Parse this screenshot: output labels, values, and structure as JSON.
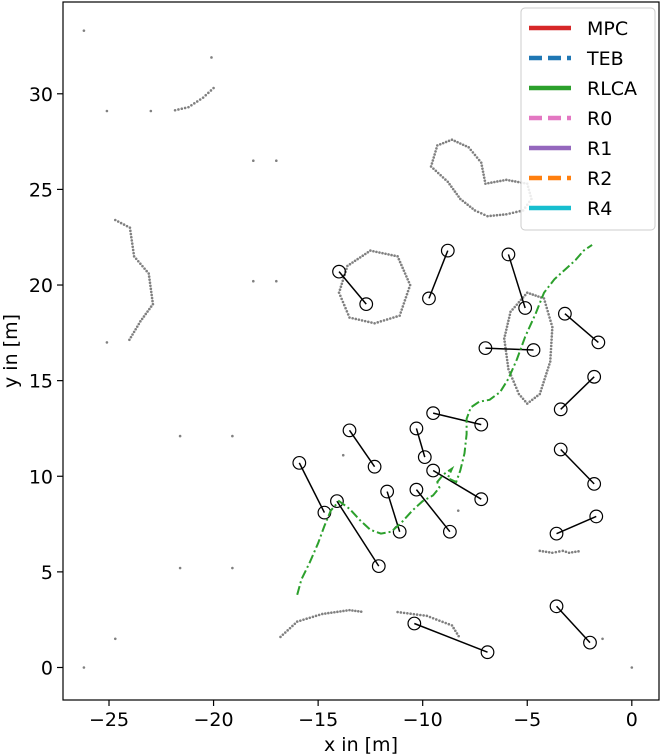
{
  "chart_data": {
    "type": "line",
    "title": "",
    "xlabel": "x in [m]",
    "ylabel": "y in [m]",
    "xlim": [
      -27.2,
      1.3
    ],
    "ylim": [
      -1.7,
      34.8
    ],
    "xticks": [
      -25,
      -20,
      -15,
      -10,
      -5,
      0
    ],
    "yticks": [
      0,
      5,
      10,
      15,
      20,
      25,
      30
    ],
    "xtick_labels": [
      "−25",
      "−20",
      "−15",
      "−10",
      "−5",
      "0"
    ],
    "ytick_labels": [
      "0",
      "5",
      "10",
      "15",
      "20",
      "25",
      "30"
    ],
    "grid": false,
    "legend_position": "top-right",
    "legend": [
      {
        "name": "MPC",
        "color": "#d62728",
        "style": "solid"
      },
      {
        "name": "TEB",
        "color": "#1f77b4",
        "style": "dashed"
      },
      {
        "name": "RLCA",
        "color": "#2ca02c",
        "style": "solid"
      },
      {
        "name": "R0",
        "color": "#e377c2",
        "style": "dashed"
      },
      {
        "name": "R1",
        "color": "#9467bd",
        "style": "solid"
      },
      {
        "name": "R2",
        "color": "#ff7f0e",
        "style": "dashed"
      },
      {
        "name": "R4",
        "color": "#17becf",
        "style": "solid"
      }
    ],
    "trajectory": {
      "name": "RLCA",
      "color": "#2ca02c",
      "style": "dashdot",
      "points": [
        [
          -16.0,
          3.8
        ],
        [
          -15.8,
          4.6
        ],
        [
          -15.4,
          5.5
        ],
        [
          -15.0,
          6.5
        ],
        [
          -14.7,
          7.4
        ],
        [
          -14.4,
          8.2
        ],
        [
          -14.0,
          8.7
        ],
        [
          -13.5,
          8.3
        ],
        [
          -13.0,
          7.7
        ],
        [
          -12.5,
          7.2
        ],
        [
          -12.0,
          7.0
        ],
        [
          -11.5,
          7.1
        ],
        [
          -11.0,
          7.6
        ],
        [
          -10.5,
          8.2
        ],
        [
          -10.0,
          8.7
        ],
        [
          -9.5,
          9.0
        ],
        [
          -9.2,
          9.4
        ],
        [
          -9.3,
          9.7
        ],
        [
          -9.0,
          10.1
        ],
        [
          -8.6,
          10.4
        ],
        [
          -8.8,
          9.9
        ],
        [
          -8.4,
          9.7
        ],
        [
          -8.2,
          10.3
        ],
        [
          -8.0,
          11.2
        ],
        [
          -7.9,
          12.2
        ],
        [
          -7.9,
          13.0
        ],
        [
          -7.7,
          13.6
        ],
        [
          -7.3,
          13.9
        ],
        [
          -6.8,
          14.0
        ],
        [
          -6.3,
          14.4
        ],
        [
          -5.9,
          15.1
        ],
        [
          -5.5,
          16.1
        ],
        [
          -5.1,
          17.3
        ],
        [
          -4.6,
          18.5
        ],
        [
          -4.2,
          19.6
        ],
        [
          -3.7,
          20.3
        ],
        [
          -3.2,
          20.8
        ],
        [
          -2.7,
          21.3
        ],
        [
          -2.3,
          21.8
        ],
        [
          -1.9,
          22.1
        ]
      ]
    },
    "obstacle_segments": [
      [
        [
          -14.0,
          20.7
        ],
        [
          -12.7,
          19.0
        ]
      ],
      [
        [
          -9.7,
          19.3
        ],
        [
          -8.8,
          21.8
        ]
      ],
      [
        [
          -5.9,
          21.6
        ],
        [
          -5.1,
          18.8
        ]
      ],
      [
        [
          -3.2,
          18.5
        ],
        [
          -1.6,
          17.0
        ]
      ],
      [
        [
          -7.0,
          16.7
        ],
        [
          -4.7,
          16.6
        ]
      ],
      [
        [
          -3.4,
          13.5
        ],
        [
          -1.8,
          15.2
        ]
      ],
      [
        [
          -9.5,
          13.3
        ],
        [
          -7.2,
          12.7
        ]
      ],
      [
        [
          -13.5,
          12.4
        ],
        [
          -12.3,
          10.5
        ]
      ],
      [
        [
          -10.3,
          12.5
        ],
        [
          -9.9,
          11.0
        ]
      ],
      [
        [
          -3.4,
          11.4
        ],
        [
          -1.8,
          9.6
        ]
      ],
      [
        [
          -9.5,
          10.3
        ],
        [
          -7.2,
          8.8
        ]
      ],
      [
        [
          -15.9,
          10.7
        ],
        [
          -14.7,
          8.1
        ]
      ],
      [
        [
          -14.1,
          8.7
        ],
        [
          -12.1,
          5.3
        ]
      ],
      [
        [
          -11.7,
          9.2
        ],
        [
          -11.1,
          7.1
        ]
      ],
      [
        [
          -10.3,
          9.3
        ],
        [
          -8.7,
          7.1
        ]
      ],
      [
        [
          -3.6,
          7.0
        ],
        [
          -1.7,
          7.9
        ]
      ],
      [
        [
          -3.6,
          3.2
        ],
        [
          -2.0,
          1.3
        ]
      ],
      [
        [
          -10.4,
          2.3
        ],
        [
          -6.9,
          0.8
        ]
      ]
    ],
    "map_arcs": [
      [
        [
          -20.0,
          30.3
        ],
        [
          -20.5,
          29.8
        ],
        [
          -21.2,
          29.3
        ],
        [
          -22.0,
          29.1
        ]
      ],
      [
        [
          -24.7,
          23.4
        ],
        [
          -24.0,
          23.0
        ],
        [
          -23.8,
          21.5
        ],
        [
          -23.1,
          20.6
        ],
        [
          -22.9,
          19.0
        ],
        [
          -23.5,
          18.1
        ],
        [
          -24.1,
          17.0
        ]
      ],
      [
        [
          -13.5,
          18.3
        ],
        [
          -14.0,
          19.6
        ],
        [
          -13.6,
          21.0
        ],
        [
          -12.5,
          21.8
        ],
        [
          -11.2,
          21.5
        ],
        [
          -10.6,
          20.0
        ],
        [
          -11.1,
          18.4
        ],
        [
          -12.3,
          18.0
        ],
        [
          -13.5,
          18.3
        ]
      ],
      [
        [
          -6.9,
          23.6
        ],
        [
          -7.5,
          23.9
        ],
        [
          -8.2,
          24.5
        ],
        [
          -8.8,
          25.4
        ],
        [
          -9.6,
          26.2
        ],
        [
          -9.3,
          27.3
        ],
        [
          -8.6,
          27.6
        ],
        [
          -7.8,
          27.2
        ],
        [
          -7.2,
          26.4
        ],
        [
          -7.0,
          25.3
        ],
        [
          -6.0,
          25.5
        ],
        [
          -5.0,
          25.3
        ],
        [
          -4.8,
          24.5
        ],
        [
          -5.2,
          23.9
        ],
        [
          -6.0,
          23.7
        ],
        [
          -6.9,
          23.6
        ]
      ],
      [
        [
          -5.4,
          14.3
        ],
        [
          -5.9,
          15.6
        ],
        [
          -6.1,
          17.2
        ],
        [
          -5.8,
          18.6
        ],
        [
          -5.0,
          19.6
        ],
        [
          -4.2,
          19.3
        ],
        [
          -3.8,
          17.8
        ],
        [
          -3.9,
          16.0
        ],
        [
          -4.4,
          14.3
        ],
        [
          -5.0,
          13.8
        ],
        [
          -5.4,
          14.3
        ]
      ],
      [
        [
          -4.4,
          6.1
        ],
        [
          -3.8,
          6.0
        ],
        [
          -3.3,
          6.1
        ],
        [
          -3.0,
          6.0
        ],
        [
          -2.4,
          6.1
        ]
      ],
      [
        [
          -16.8,
          1.6
        ],
        [
          -16.0,
          2.4
        ],
        [
          -14.8,
          2.8
        ],
        [
          -13.5,
          3.0
        ],
        [
          -12.8,
          2.9
        ]
      ],
      [
        [
          -11.2,
          2.9
        ],
        [
          -9.8,
          2.7
        ],
        [
          -8.6,
          2.2
        ],
        [
          -8.2,
          1.5
        ]
      ]
    ],
    "scatter_points": [
      [
        -26.2,
        33.3
      ],
      [
        -20.1,
        31.9
      ],
      [
        -25.1,
        29.1
      ],
      [
        -23.0,
        29.1
      ],
      [
        -18.1,
        26.5
      ],
      [
        -17.0,
        26.5
      ],
      [
        -18.1,
        20.2
      ],
      [
        -17.0,
        20.2
      ],
      [
        -25.1,
        17.0
      ],
      [
        -21.6,
        12.1
      ],
      [
        -19.1,
        12.1
      ],
      [
        -21.6,
        5.2
      ],
      [
        -19.1,
        5.2
      ],
      [
        -24.7,
        1.5
      ],
      [
        -26.2,
        0.0
      ],
      [
        0.0,
        0.0
      ],
      [
        -1.4,
        1.5
      ],
      [
        -13.8,
        11.1
      ],
      [
        -8.3,
        8.2
      ]
    ]
  }
}
